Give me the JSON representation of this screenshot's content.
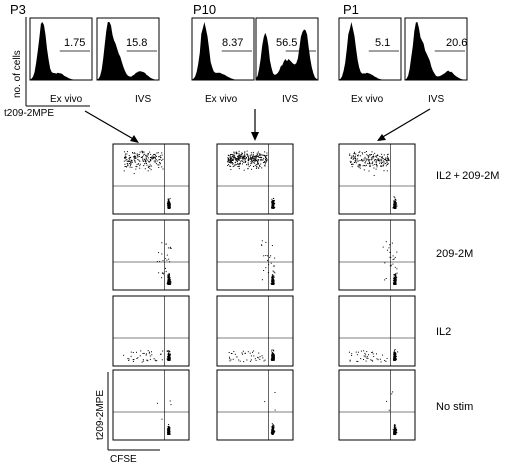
{
  "axes": {
    "hist_y_label": "no. of cells",
    "hist_x_label": "t209-2MPE",
    "dot_y_label": "t209-2MPE",
    "dot_x_label": "CFSE"
  },
  "conditions": [
    "IL2 + 209-2M",
    "209-2M",
    "IL2",
    "No stim"
  ],
  "patients": [
    {
      "name": "P3",
      "ex_vivo_label": "Ex vivo",
      "ivs_label": "IVS",
      "ex_vivo_value": "1.75",
      "ivs_value": "15.8"
    },
    {
      "name": "P10",
      "ex_vivo_label": "Ex vivo",
      "ivs_label": "IVS",
      "ex_vivo_value": "8.37",
      "ivs_value": "56.5"
    },
    {
      "name": "P1",
      "ex_vivo_label": "Ex vivo",
      "ivs_label": "IVS",
      "ex_vivo_value": "5.1",
      "ivs_value": "20.6"
    }
  ]
}
